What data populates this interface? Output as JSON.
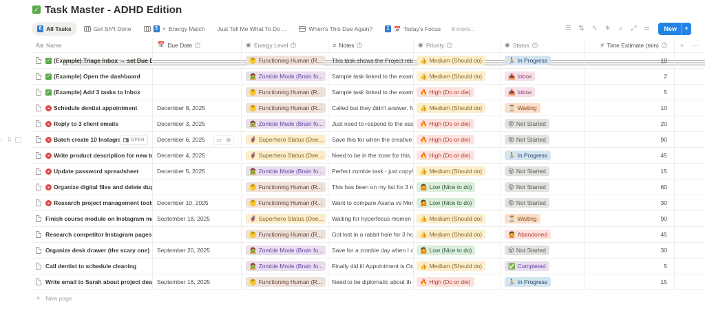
{
  "page": {
    "title": "Task Master - ADHD Edition",
    "title_icon": "check-box"
  },
  "tabs": [
    {
      "label": "All Tasks",
      "icon": "table",
      "badge": "8",
      "emoji": "",
      "active": true
    },
    {
      "label": "Get Sh*t Done",
      "icon": "board",
      "badge": "",
      "emoji": "",
      "active": false
    },
    {
      "label": "Energy Match",
      "icon": "board",
      "badge": "3",
      "emoji": "⚡",
      "active": false
    },
    {
      "label": "Just Tell Me What To Do ...",
      "icon": "table",
      "badge": "",
      "emoji": "",
      "active": false
    },
    {
      "label": "When's This Due Again?",
      "icon": "calendar",
      "badge": "",
      "emoji": "",
      "active": false
    },
    {
      "label": "Today's Focus",
      "icon": "table",
      "badge": "1",
      "emoji": "📅",
      "active": false
    }
  ],
  "more_tabs": "8 more...",
  "toolbar": {
    "icons": [
      "filter-icon",
      "sort-icon",
      "lightning-icon",
      "sparkle-icon",
      "search-icon",
      "expand-icon",
      "settings-sliders-icon"
    ],
    "new_label": "New",
    "new_caret": "▾"
  },
  "columns": [
    {
      "label": "Name",
      "icon": "Aa",
      "info": false
    },
    {
      "label": "Due Date",
      "icon": "📅",
      "info": true
    },
    {
      "label": "Energy Level",
      "icon": "◉",
      "info": true
    },
    {
      "label": "Notes",
      "icon": "≡",
      "info": true
    },
    {
      "label": "Priority",
      "icon": "◉",
      "info": true
    },
    {
      "label": "Status",
      "icon": "◉",
      "info": true
    },
    {
      "label": "Time Estimate (min)",
      "icon": "#",
      "info": true
    }
  ],
  "header_actions": {
    "add": "+",
    "more": "···"
  },
  "hovered_row": {
    "open_label": "OPEN"
  },
  "rows": [
    {
      "emoji": "check",
      "name": "(Example) Triage Inbox → set Due Da",
      "due": "",
      "energy": {
        "icon": "🤔",
        "label": "Functioning Human (R...",
        "color": "brown"
      },
      "notes": "This task shows the Project rela",
      "priority": {
        "icon": "👍",
        "label": "Medium (Should do)",
        "color": "yellow"
      },
      "status": {
        "icon": "🏃",
        "label": "In Progress",
        "color": "blue"
      },
      "time": "10"
    },
    {
      "emoji": "check",
      "name": "(Example) Open the dashboard",
      "due": "",
      "energy": {
        "icon": "🧟",
        "label": "Zombie Mode (Brain fo...",
        "color": "purple"
      },
      "notes": "Sample task linked to the examp",
      "priority": {
        "icon": "👍",
        "label": "Medium (Should do)",
        "color": "yellow"
      },
      "status": {
        "icon": "📥",
        "label": "Inbox",
        "color": "pink"
      },
      "time": "2"
    },
    {
      "emoji": "check",
      "name": "(Example) Add 3 tasks to Inbox",
      "due": "",
      "energy": {
        "icon": "🤔",
        "label": "Functioning Human (R...",
        "color": "brown"
      },
      "notes": "Sample task linked to the examp",
      "priority": {
        "icon": "🔥",
        "label": "High (Do or die)",
        "color": "red"
      },
      "status": {
        "icon": "📥",
        "label": "Inbox",
        "color": "pink"
      },
      "time": "5"
    },
    {
      "emoji": "target",
      "name": "Schedule dentist appointment",
      "due": "December 8, 2025",
      "energy": {
        "icon": "🤔",
        "label": "Functioning Human (R...",
        "color": "brown"
      },
      "notes": "Called but they didn't answer. N",
      "priority": {
        "icon": "👍",
        "label": "Medium (Should do)",
        "color": "yellow"
      },
      "status": {
        "icon": "⏳",
        "label": "Waiting",
        "color": "orange"
      },
      "time": "10"
    },
    {
      "emoji": "target",
      "name": "Reply to 3 client emails",
      "due": "December 3, 2025",
      "energy": {
        "icon": "🧟",
        "label": "Zombie Mode (Brain fo...",
        "color": "purple"
      },
      "notes": "Just need to respond to the eas",
      "priority": {
        "icon": "🔥",
        "label": "High (Do or die)",
        "color": "red"
      },
      "status": {
        "icon": "😵",
        "label": "Not Started",
        "color": "gray"
      },
      "time": "20"
    },
    {
      "emoji": "target",
      "name": "Batch create 10 Instagram",
      "due": "December 6, 2025",
      "energy": {
        "icon": "🦸",
        "label": "Superhero Status (Dee...",
        "color": "yellow"
      },
      "notes": "Save this for when the creative",
      "priority": {
        "icon": "🔥",
        "label": "High (Do or die)",
        "color": "red"
      },
      "status": {
        "icon": "😵",
        "label": "Not Started",
        "color": "gray"
      },
      "time": "90",
      "hovered": true
    },
    {
      "emoji": "target",
      "name": "Write product description for new te",
      "due": "December 4, 2025",
      "energy": {
        "icon": "🦸",
        "label": "Superhero Status (Dee...",
        "color": "yellow"
      },
      "notes": "Need to be in the zone for this.",
      "priority": {
        "icon": "🔥",
        "label": "High (Do or die)",
        "color": "red"
      },
      "status": {
        "icon": "🏃",
        "label": "In Progress",
        "color": "blue"
      },
      "time": "45"
    },
    {
      "emoji": "target",
      "name": "Update password spreadsheet",
      "due": "December 5, 2025",
      "energy": {
        "icon": "🧟",
        "label": "Zombie Mode (Brain fo...",
        "color": "purple"
      },
      "notes": "Perfect zombie task - just copy/",
      "priority": {
        "icon": "👍",
        "label": "Medium (Should do)",
        "color": "yellow"
      },
      "status": {
        "icon": "😵",
        "label": "Not Started",
        "color": "gray"
      },
      "time": "15"
    },
    {
      "emoji": "target",
      "name": "Organize digital files and delete dup",
      "due": "",
      "energy": {
        "icon": "🤔",
        "label": "Functioning Human (R...",
        "color": "brown"
      },
      "notes": "This has been on my list for 3 m",
      "priority": {
        "icon": "🤷",
        "label": "Low (Nice to do)",
        "color": "green"
      },
      "status": {
        "icon": "😵",
        "label": "Not Started",
        "color": "gray"
      },
      "time": "60"
    },
    {
      "emoji": "target",
      "name": "Research project management tools",
      "due": "December 10, 2025",
      "energy": {
        "icon": "🤔",
        "label": "Functioning Human (R...",
        "color": "brown"
      },
      "notes": "Want to compare Asana vs Mor",
      "priority": {
        "icon": "🤷",
        "label": "Low (Nice to do)",
        "color": "green"
      },
      "status": {
        "icon": "😵",
        "label": "Not Started",
        "color": "gray"
      },
      "time": "30"
    },
    {
      "emoji": "",
      "name": "Finish course module on Instagram mar",
      "due": "September 18, 2025",
      "energy": {
        "icon": "🦸",
        "label": "Superhero Status (Dee...",
        "color": "yellow"
      },
      "notes": "Waiting for hyperfocus momen",
      "priority": {
        "icon": "👍",
        "label": "Medium (Should do)",
        "color": "yellow"
      },
      "status": {
        "icon": "⏳",
        "label": "Waiting",
        "color": "orange"
      },
      "time": "90"
    },
    {
      "emoji": "",
      "name": "Research competitor Instagram pages",
      "due": "",
      "energy": {
        "icon": "🤔",
        "label": "Functioning Human (R...",
        "color": "brown"
      },
      "notes": "Got lost in a rabbit hole for 3 hc",
      "priority": {
        "icon": "👍",
        "label": "Medium (Should do)",
        "color": "yellow"
      },
      "status": {
        "icon": "🙅",
        "label": "Abandoned",
        "color": "red"
      },
      "time": "45"
    },
    {
      "emoji": "",
      "name": "Organize desk drawer (the scary one)",
      "due": "September 20, 2025",
      "energy": {
        "icon": "🧟",
        "label": "Zombie Mode (Brain fo...",
        "color": "purple"
      },
      "notes": "Save for a zombie day when I ca",
      "priority": {
        "icon": "🤷",
        "label": "Low (Nice to do)",
        "color": "green"
      },
      "status": {
        "icon": "😵",
        "label": "Not Started",
        "color": "gray"
      },
      "time": "30"
    },
    {
      "emoji": "",
      "name": "Call dentist to schedule cleaning",
      "due": "",
      "energy": {
        "icon": "🧟",
        "label": "Zombie Mode (Brain fo...",
        "color": "purple"
      },
      "notes": "Finally did it! Appointment is Oc",
      "priority": {
        "icon": "👍",
        "label": "Medium (Should do)",
        "color": "yellow"
      },
      "status": {
        "icon": "✅",
        "label": "Completed",
        "color": "purple"
      },
      "time": "5"
    },
    {
      "emoji": "",
      "name": "Write email to Sarah about project dead",
      "due": "September 16, 2025",
      "energy": {
        "icon": "🤔",
        "label": "Functioning Human (R...",
        "color": "brown"
      },
      "notes": "Need to be diplomatic about th",
      "priority": {
        "icon": "🔥",
        "label": "High (Do or die)",
        "color": "red"
      },
      "status": {
        "icon": "🏃",
        "label": "In Progress",
        "color": "blue"
      },
      "time": "15"
    }
  ],
  "footer": {
    "new_page_label": "New page"
  }
}
